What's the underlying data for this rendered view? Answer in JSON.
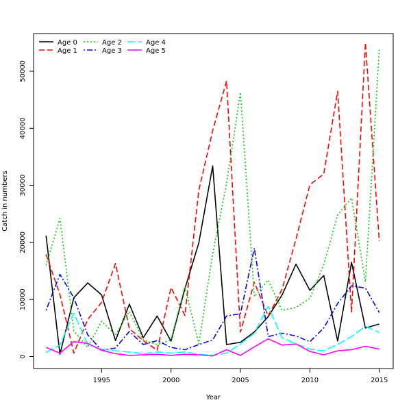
{
  "chart_data": {
    "type": "line",
    "title": "",
    "xlabel": "Year",
    "ylabel": "Catch in numbers",
    "xlim": [
      1990.1,
      2016.0
    ],
    "ylim": [
      -2100,
      56600
    ],
    "xticks": [
      1995,
      2000,
      2005,
      2010,
      2015
    ],
    "xtick_labels": [
      "1995",
      "2000",
      "2005",
      "2010",
      "2015"
    ],
    "yticks": [
      0,
      10000,
      20000,
      30000,
      40000,
      50000
    ],
    "ytick_labels": [
      "0",
      "10000",
      "20000",
      "30000",
      "40000",
      "50000"
    ],
    "grid": false,
    "legend_position": "top-left",
    "x": [
      1991,
      1992,
      1993,
      1994,
      1995,
      1996,
      1997,
      1998,
      1999,
      2000,
      2001,
      2002,
      2003,
      2004,
      2005,
      2006,
      2007,
      2008,
      2009,
      2010,
      2011,
      2012,
      2013,
      2014,
      2015
    ],
    "series": [
      {
        "name": "Age 0",
        "color": "#000000",
        "dash": "solid",
        "values": [
          21200,
          400,
          10300,
          12900,
          10800,
          2800,
          9200,
          3300,
          7100,
          2700,
          11900,
          19900,
          33400,
          2100,
          2500,
          4300,
          7000,
          10800,
          16200,
          11600,
          14200,
          2700,
          16500,
          5000,
          5700
        ]
      },
      {
        "name": "Age 1",
        "color": "#ff0000",
        "dash": "dashed",
        "values": [
          17900,
          10900,
          600,
          6500,
          9500,
          16300,
          4900,
          2800,
          1100,
          12100,
          7200,
          29100,
          39600,
          48300,
          4300,
          13000,
          7100,
          11800,
          20600,
          30100,
          32000,
          46500,
          7800,
          55000,
          20200
        ]
      },
      {
        "name": "Age 2",
        "color": "#00cd00",
        "dash": "dotted",
        "values": [
          16000,
          24200,
          4500,
          1600,
          6200,
          3800,
          7900,
          2900,
          2100,
          2900,
          12300,
          2200,
          18000,
          30300,
          46300,
          10500,
          13400,
          8100,
          8600,
          10200,
          16100,
          24800,
          27800,
          13100,
          53900
        ]
      },
      {
        "name": "Age 3",
        "color": "#0000ff",
        "dash": "dashdot",
        "values": [
          8100,
          14400,
          10300,
          3800,
          1100,
          1500,
          4400,
          2100,
          2800,
          1600,
          1200,
          2100,
          2900,
          7100,
          7500,
          19000,
          3500,
          4100,
          3600,
          2600,
          5000,
          9300,
          12400,
          12000,
          7700
        ]
      },
      {
        "name": "Age 4",
        "color": "#00ffff",
        "dash": "longdash",
        "values": [
          700,
          2000,
          7600,
          2100,
          1300,
          1000,
          800,
          500,
          800,
          600,
          800,
          400,
          200,
          600,
          2200,
          4100,
          8800,
          3300,
          2200,
          1300,
          1000,
          2100,
          3500,
          5300,
          4200
        ]
      },
      {
        "name": "Age 5",
        "color": "#ff00ff",
        "dash": "solid",
        "values": [
          1600,
          600,
          2600,
          2300,
          1100,
          500,
          200,
          300,
          400,
          200,
          400,
          300,
          100,
          1200,
          200,
          1700,
          3100,
          2000,
          2200,
          900,
          300,
          1000,
          1200,
          1800,
          1300
        ]
      }
    ]
  }
}
